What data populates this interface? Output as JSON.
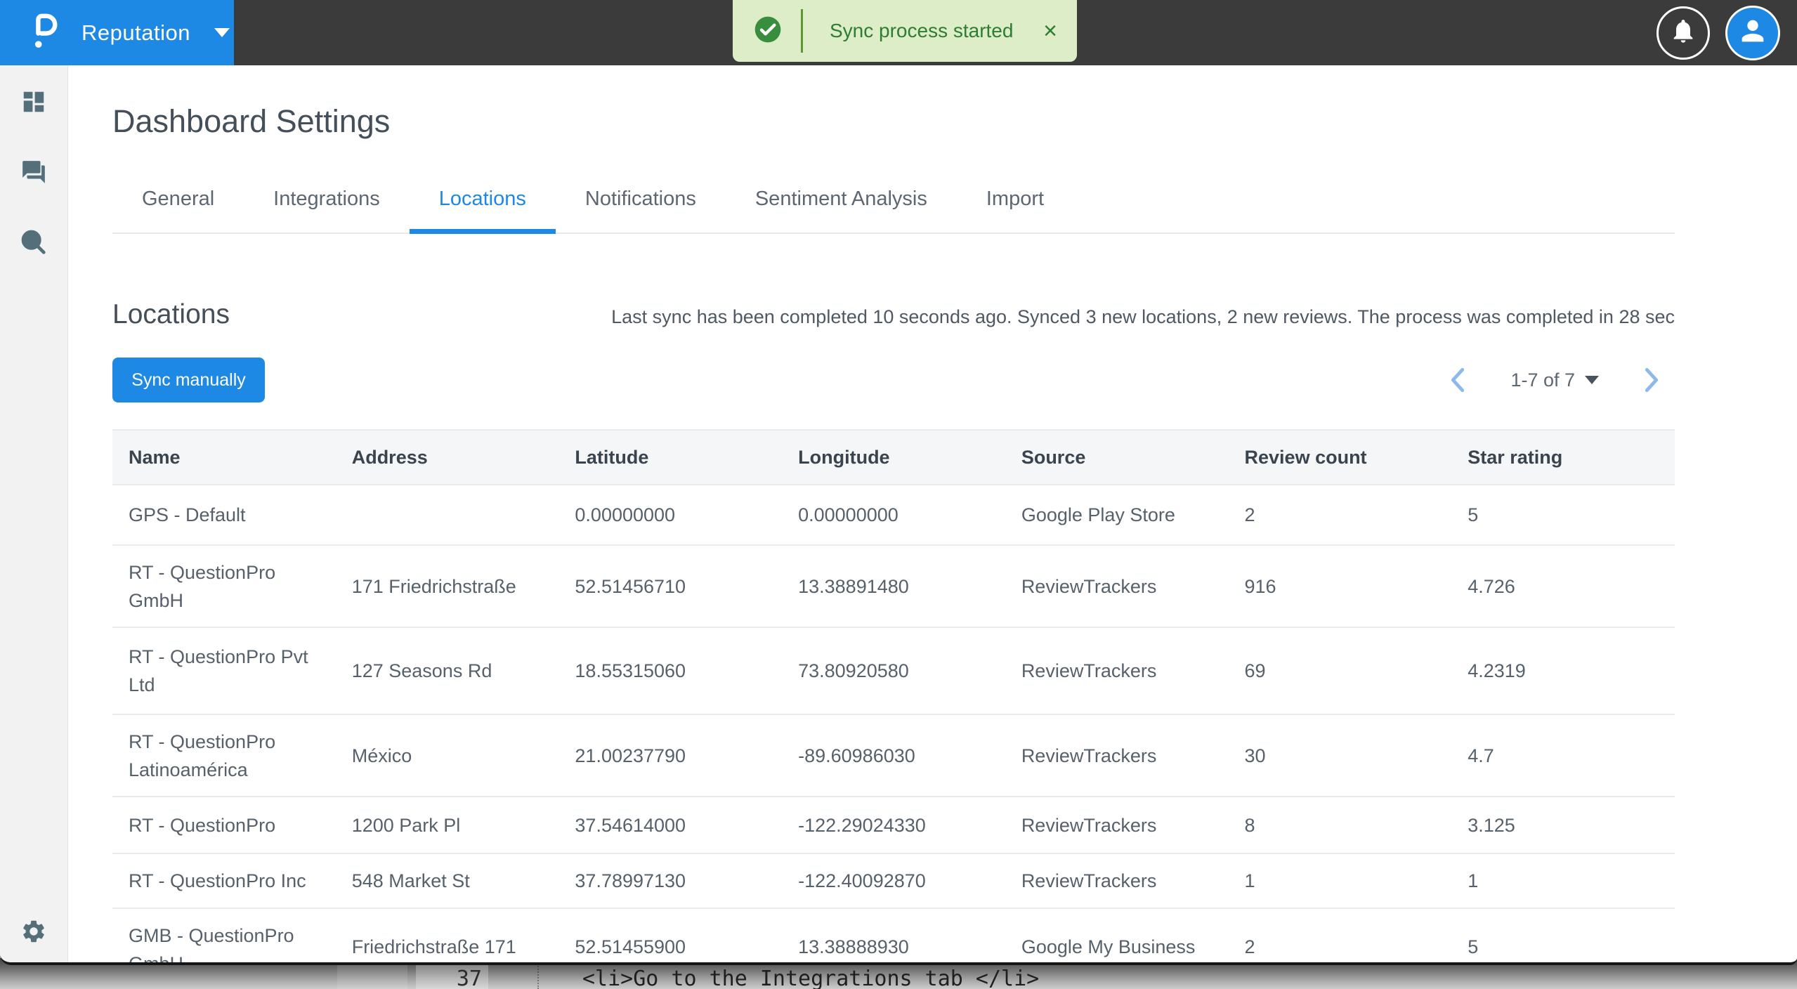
{
  "topbar": {
    "brand_label": "Reputation",
    "toast": {
      "message": "Sync process started",
      "close_label": "×"
    }
  },
  "sidebar": {
    "items": [
      {
        "name": "dashboard"
      },
      {
        "name": "conversations"
      },
      {
        "name": "review-search"
      },
      {
        "name": "settings"
      }
    ]
  },
  "page": {
    "title": "Dashboard Settings",
    "tabs": [
      {
        "label": "General",
        "active": false
      },
      {
        "label": "Integrations",
        "active": false
      },
      {
        "label": "Locations",
        "active": true
      },
      {
        "label": "Notifications",
        "active": false
      },
      {
        "label": "Sentiment Analysis",
        "active": false
      },
      {
        "label": "Import",
        "active": false
      }
    ],
    "section": {
      "heading": "Locations",
      "status_text": "Last sync has been completed 10 seconds ago. Synced 3 new locations, 2 new reviews. The process was completed in 28 sec",
      "sync_button_label": "Sync manually",
      "pagination": {
        "range_label": "1-7 of 7"
      }
    },
    "table": {
      "columns": [
        "Name",
        "Address",
        "Latitude",
        "Longitude",
        "Source",
        "Review count",
        "Star rating"
      ],
      "rows": [
        {
          "name": "GPS - Default",
          "address": "",
          "latitude": "0.00000000",
          "longitude": "0.00000000",
          "source": "Google Play Store",
          "review_count": "2",
          "star_rating": "5"
        },
        {
          "name": "RT - QuestionPro GmbH",
          "address": "171 Friedrichstraße",
          "latitude": "52.51456710",
          "longitude": "13.38891480",
          "source": "ReviewTrackers",
          "review_count": "916",
          "star_rating": "4.726"
        },
        {
          "name": "RT - QuestionPro Pvt Ltd",
          "address": "127 Seasons Rd",
          "latitude": "18.55315060",
          "longitude": "73.80920580",
          "source": "ReviewTrackers",
          "review_count": "69",
          "star_rating": "4.2319"
        },
        {
          "name": "RT - QuestionPro Latinoamérica",
          "address": "México",
          "latitude": "21.00237790",
          "longitude": "-89.60986030",
          "source": "ReviewTrackers",
          "review_count": "30",
          "star_rating": "4.7"
        },
        {
          "name": "RT - QuestionPro",
          "address": "1200 Park Pl",
          "latitude": "37.54614000",
          "longitude": "-122.29024330",
          "source": "ReviewTrackers",
          "review_count": "8",
          "star_rating": "3.125"
        },
        {
          "name": "RT - QuestionPro Inc",
          "address": "548 Market St",
          "latitude": "37.78997130",
          "longitude": "-122.40092870",
          "source": "ReviewTrackers",
          "review_count": "1",
          "star_rating": "1"
        },
        {
          "name": "GMB - QuestionPro GmbH",
          "address": "Friedrichstraße 171",
          "latitude": "52.51455900",
          "longitude": "13.38888930",
          "source": "Google My Business",
          "review_count": "2",
          "star_rating": "5"
        }
      ]
    }
  },
  "background_editor": {
    "line_number": "37",
    "code_text": "<li>Go to the Integrations tab </li>"
  },
  "colors": {
    "accent_blue": "#1e88e5",
    "topbar_dark": "#3b3b3b",
    "toast_bg": "#dcedc8",
    "toast_green": "#2e7d32",
    "sidebar_bg": "#f2f2f2",
    "icon_slate": "#546e7a",
    "pager_chevron_blue": "#8db9ea"
  }
}
